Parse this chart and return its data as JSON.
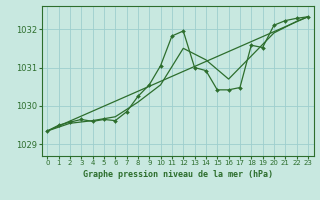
{
  "title": "Graphe pression niveau de la mer (hPa)",
  "bg_color": "#c8e8e0",
  "line_color": "#2d6e2d",
  "grid_color": "#9ecece",
  "xlim": [
    -0.5,
    23.5
  ],
  "ylim": [
    1028.7,
    1032.6
  ],
  "yticks": [
    1029,
    1030,
    1031,
    1032
  ],
  "xticks": [
    0,
    1,
    2,
    3,
    4,
    5,
    6,
    7,
    8,
    9,
    10,
    11,
    12,
    13,
    14,
    15,
    16,
    17,
    18,
    19,
    20,
    21,
    22,
    23
  ],
  "hours": [
    0,
    1,
    2,
    3,
    4,
    5,
    6,
    7,
    8,
    9,
    10,
    11,
    12,
    13,
    14,
    15,
    16,
    17,
    18,
    19,
    20,
    21,
    22,
    23
  ],
  "pressure": [
    1029.35,
    1029.5,
    1029.58,
    1029.65,
    1029.6,
    1029.65,
    1029.62,
    1029.85,
    1030.25,
    1030.55,
    1031.05,
    1031.82,
    1031.95,
    1031.0,
    1030.92,
    1030.42,
    1030.42,
    1030.48,
    1031.58,
    1031.52,
    1032.1,
    1032.22,
    1032.28,
    1032.32
  ],
  "trend_x": [
    0,
    23
  ],
  "trend_y": [
    1029.35,
    1032.32
  ],
  "smooth_x": [
    0,
    2,
    4,
    6,
    8,
    10,
    12,
    14,
    16,
    18,
    20,
    22,
    23
  ],
  "smooth_y": [
    1029.35,
    1029.55,
    1029.62,
    1029.72,
    1030.1,
    1030.55,
    1031.5,
    1031.2,
    1030.7,
    1031.3,
    1031.9,
    1032.2,
    1032.32
  ]
}
